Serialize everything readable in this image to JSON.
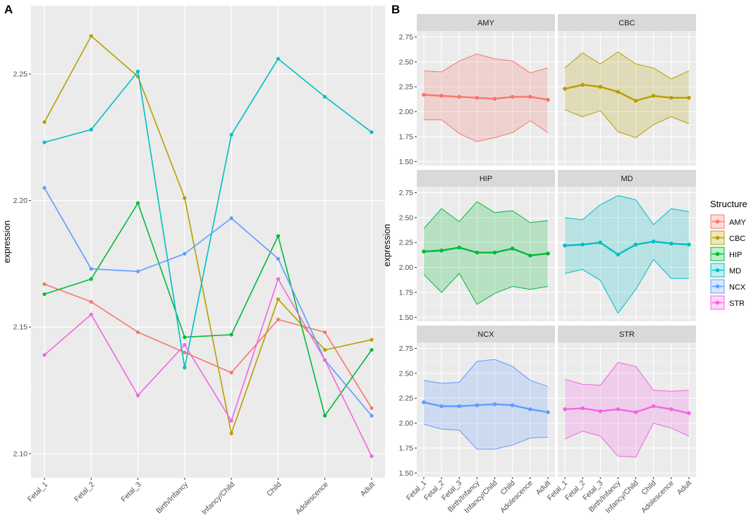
{
  "chart_data": [
    {
      "panel_label": "A",
      "type": "line",
      "title": "",
      "xlabel": "",
      "ylabel": "expression",
      "ylim": [
        2.0905,
        2.277
      ],
      "yticks": [
        2.1,
        2.15,
        2.2,
        2.25
      ],
      "ytick_labels": [
        "2.10",
        "2.15",
        "2.20",
        "2.25"
      ],
      "grid": true,
      "categories": [
        "Fetal_1",
        "Fetal_2",
        "Fetal_3",
        "Birth/Infancy",
        "Infancy/Child",
        "Child",
        "Adolescence",
        "Adult"
      ],
      "series": [
        {
          "name": "AMY",
          "values": [
            2.167,
            2.16,
            2.148,
            2.14,
            2.132,
            2.153,
            2.148,
            2.118
          ]
        },
        {
          "name": "CBC",
          "values": [
            2.231,
            2.265,
            2.249,
            2.201,
            2.108,
            2.161,
            2.141,
            2.145
          ]
        },
        {
          "name": "HIP",
          "values": [
            2.163,
            2.169,
            2.199,
            2.146,
            2.147,
            2.186,
            2.115,
            2.141
          ]
        },
        {
          "name": "MD",
          "values": [
            2.223,
            2.228,
            2.251,
            2.134,
            2.226,
            2.256,
            2.241,
            2.227
          ]
        },
        {
          "name": "NCX",
          "values": [
            2.205,
            2.173,
            2.172,
            2.179,
            2.193,
            2.177,
            2.137,
            2.115
          ]
        },
        {
          "name": "STR",
          "values": [
            2.139,
            2.155,
            2.123,
            2.143,
            2.113,
            2.169,
            2.137,
            2.099
          ]
        }
      ]
    },
    {
      "panel_label": "B",
      "type": "area",
      "title": "",
      "xlabel": "",
      "ylabel": "expression",
      "ylim": [
        1.5,
        2.75
      ],
      "yticks": [
        1.5,
        1.75,
        2.0,
        2.25,
        2.5,
        2.75
      ],
      "ytick_labels": [
        "1.50",
        "1.75",
        "2.00",
        "2.25",
        "2.50",
        "2.75"
      ],
      "grid": true,
      "categories": [
        "Fetal_1",
        "Fetal_2",
        "Fetal_3",
        "Birth/Infancy",
        "Infancy/Child",
        "Child",
        "Adolescence",
        "Adult"
      ],
      "facets": [
        {
          "name": "AMY",
          "mean": [
            2.17,
            2.16,
            2.15,
            2.14,
            2.13,
            2.15,
            2.15,
            2.12
          ],
          "upper": [
            2.41,
            2.4,
            2.51,
            2.58,
            2.53,
            2.51,
            2.39,
            2.44
          ],
          "lower": [
            1.92,
            1.92,
            1.78,
            1.7,
            1.74,
            1.79,
            1.91,
            1.79
          ]
        },
        {
          "name": "CBC",
          "mean": [
            2.23,
            2.27,
            2.25,
            2.2,
            2.11,
            2.16,
            2.14,
            2.14
          ],
          "upper": [
            2.44,
            2.59,
            2.48,
            2.6,
            2.48,
            2.44,
            2.33,
            2.41
          ],
          "lower": [
            2.02,
            1.95,
            2.01,
            1.8,
            1.74,
            1.87,
            1.95,
            1.88
          ]
        },
        {
          "name": "HIP",
          "mean": [
            2.16,
            2.17,
            2.2,
            2.15,
            2.15,
            2.19,
            2.12,
            2.14
          ],
          "upper": [
            2.39,
            2.59,
            2.46,
            2.66,
            2.55,
            2.57,
            2.45,
            2.47
          ],
          "lower": [
            1.93,
            1.75,
            1.94,
            1.63,
            1.74,
            1.81,
            1.78,
            1.81
          ]
        },
        {
          "name": "MD",
          "mean": [
            2.22,
            2.23,
            2.25,
            2.13,
            2.23,
            2.26,
            2.24,
            2.23
          ],
          "upper": [
            2.5,
            2.48,
            2.63,
            2.72,
            2.68,
            2.43,
            2.59,
            2.56
          ],
          "lower": [
            1.94,
            1.98,
            1.87,
            1.54,
            1.78,
            2.08,
            1.89,
            1.89
          ]
        },
        {
          "name": "NCX",
          "mean": [
            2.21,
            2.17,
            2.17,
            2.18,
            2.19,
            2.18,
            2.14,
            2.11
          ],
          "upper": [
            2.43,
            2.4,
            2.41,
            2.62,
            2.64,
            2.57,
            2.43,
            2.37
          ],
          "lower": [
            1.99,
            1.94,
            1.93,
            1.74,
            1.74,
            1.78,
            1.85,
            1.86
          ]
        },
        {
          "name": "STR",
          "mean": [
            2.14,
            2.15,
            2.12,
            2.14,
            2.11,
            2.17,
            2.14,
            2.1
          ],
          "upper": [
            2.44,
            2.39,
            2.38,
            2.61,
            2.57,
            2.33,
            2.32,
            2.33
          ],
          "lower": [
            1.84,
            1.92,
            1.87,
            1.67,
            1.66,
            2.0,
            1.95,
            1.87
          ]
        }
      ]
    }
  ],
  "legend": {
    "title": "Structure",
    "placement": "right",
    "items": [
      "AMY",
      "CBC",
      "HIP",
      "MD",
      "NCX",
      "STR"
    ]
  },
  "colors": {
    "AMY": "#F8766D",
    "CBC": "#B79F00",
    "HIP": "#00BA38",
    "MD": "#00BFC4",
    "NCX": "#619CFF",
    "STR": "#F564E3",
    "panel_bg": "#EBEBEB",
    "strip_bg": "#D9D9D9",
    "text": "#4D4D4D"
  }
}
